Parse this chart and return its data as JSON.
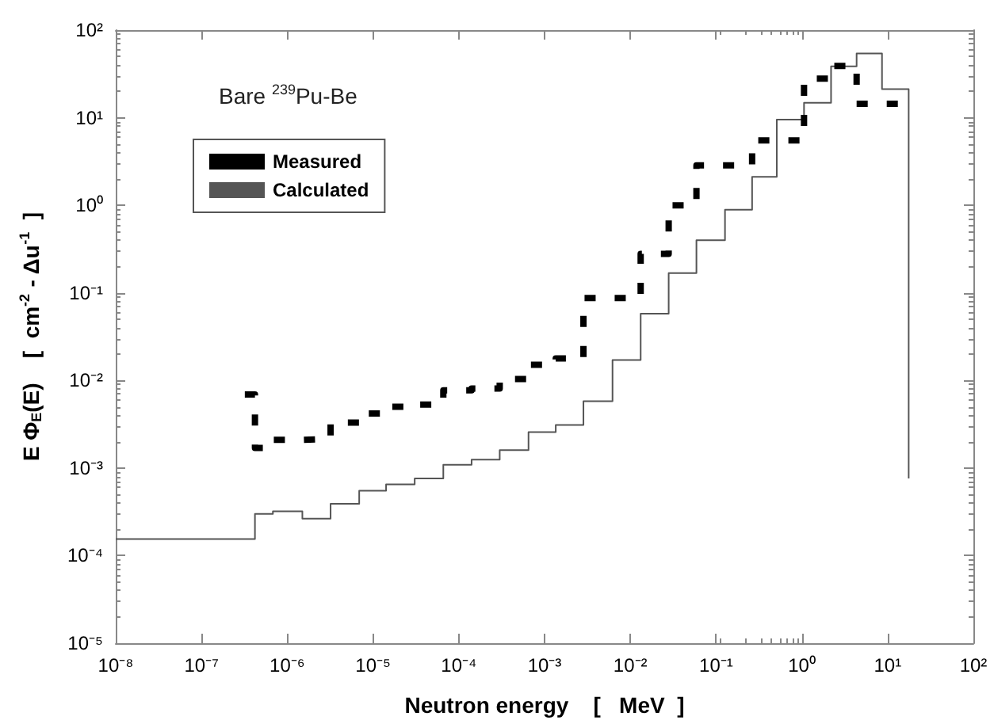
{
  "chart_data": {
    "type": "step",
    "xlabel": "Neutron energy    [   MeV  ]",
    "ylabel": "E Φ$_{E}$(E)    [  cm$^{-2}$ - Δu$^{-1}$  ]",
    "annotations": [
      "Bare $^{239}$Pu-Be"
    ],
    "log": "xy",
    "grid": false,
    "legend": "top left",
    "xlim": [
      1e-08,
      100
    ],
    "ylim": [
      1e-05,
      100
    ],
    "xticks": [
      {
        "value": 1e-08,
        "label": "10⁻⁸"
      },
      {
        "value": 1e-07,
        "label": "10⁻⁷"
      },
      {
        "value": 1e-06,
        "label": "10⁻⁶"
      },
      {
        "value": 1e-05,
        "label": "10⁻⁵"
      },
      {
        "value": 0.0001,
        "label": "10⁻⁴"
      },
      {
        "value": 0.001,
        "label": "10⁻³"
      },
      {
        "value": 0.01,
        "label": "10⁻²"
      },
      {
        "value": 0.1,
        "label": "10⁻¹"
      },
      {
        "value": 1,
        "label": "10⁰"
      },
      {
        "value": 10,
        "label": "10¹"
      },
      {
        "value": 100,
        "label": "10²"
      }
    ],
    "yticks": [
      {
        "value": 1e-05,
        "label": "10⁻⁵"
      },
      {
        "value": 0.0001,
        "label": "10⁻⁴"
      },
      {
        "value": 0.001,
        "label": "10⁻³"
      },
      {
        "value": 0.01,
        "label": "10⁻²"
      },
      {
        "value": 0.1,
        "label": "10⁻¹"
      },
      {
        "value": 1,
        "label": "10⁰"
      },
      {
        "value": 10,
        "label": "10¹"
      },
      {
        "value": 100,
        "label": "10²"
      }
    ],
    "series": [
      {
        "name": "Measured",
        "color": "#000000",
        "line_style": "dashed",
        "x": [
          3.2e-07,
          4.2e-07,
          6.8e-07,
          1.5e-06,
          3.2e-06,
          6.9e-06,
          1.42e-05,
          3.06e-05,
          6.6e-05,
          0.000141,
          0.0003,
          0.00065,
          0.00135,
          0.00284,
          0.0062,
          0.0132,
          0.028,
          0.059,
          0.127,
          0.263,
          0.51,
          1.06,
          2.19,
          4.35,
          8.6,
          17.6
        ],
        "values": [
          0.0069,
          0.0017,
          0.0021,
          0.00215,
          0.0033,
          0.0042,
          0.005,
          0.0053,
          0.0077,
          0.0081,
          0.0104,
          0.0151,
          0.0178,
          0.0875,
          0.0875,
          0.279,
          1.0,
          2.85,
          2.85,
          5.5,
          5.5,
          28,
          39,
          14.4,
          14.4,
          14.4
        ]
      },
      {
        "name": "Calculated",
        "color": "#555555",
        "line_style": "solid",
        "x": [
          1e-08,
          4.2e-07,
          6.8e-07,
          1.5e-06,
          3.2e-06,
          6.9e-06,
          1.42e-05,
          3.06e-05,
          6.6e-05,
          0.000141,
          0.0003,
          0.00065,
          0.00135,
          0.00284,
          0.0062,
          0.0132,
          0.028,
          0.059,
          0.127,
          0.263,
          0.51,
          1.06,
          2.19,
          4.35,
          8.6,
          17.6
        ],
        "values": [
          0.000155,
          0.0003,
          0.00032,
          0.000265,
          0.00039,
          0.00055,
          0.00065,
          0.00076,
          0.00109,
          0.00125,
          0.0016,
          0.00257,
          0.0031,
          0.0058,
          0.0171,
          0.0578,
          0.168,
          0.4,
          0.89,
          2.11,
          9.5,
          14.8,
          38.5,
          54,
          21.2,
          0.00076
        ]
      }
    ]
  }
}
